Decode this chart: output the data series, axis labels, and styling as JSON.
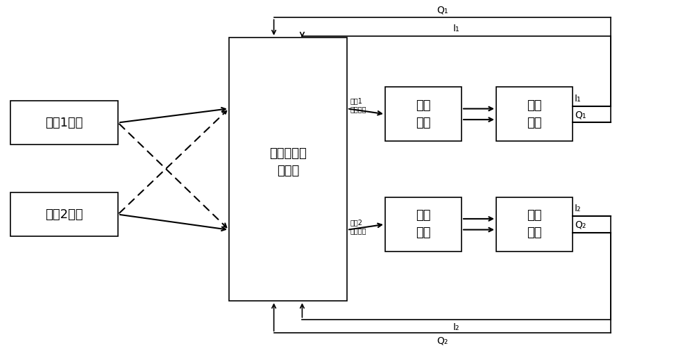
{
  "bg_color": "#ffffff",
  "box_color": "#ffffff",
  "box_edge": "#000000",
  "line_color": "#000000",
  "ch1_label": "通道1信号",
  "ch2_label": "通道2信号",
  "center_label_line1": "中频交叉极",
  "center_label_line2": "化对消",
  "carrier_sync": "载波\n同步",
  "symbol_sync": "码元\n同步",
  "ch1_if_label_line1": "通道1",
  "ch1_if_label_line2": "中频信号",
  "ch2_if_label_line1": "通道2",
  "ch2_if_label_line2": "中频信号",
  "I1_label": "I₁",
  "Q1_label": "Q₁",
  "I2_label": "I₂",
  "Q2_label": "Q₂",
  "font_size_main": 13,
  "font_size_small": 7,
  "font_size_label": 10
}
